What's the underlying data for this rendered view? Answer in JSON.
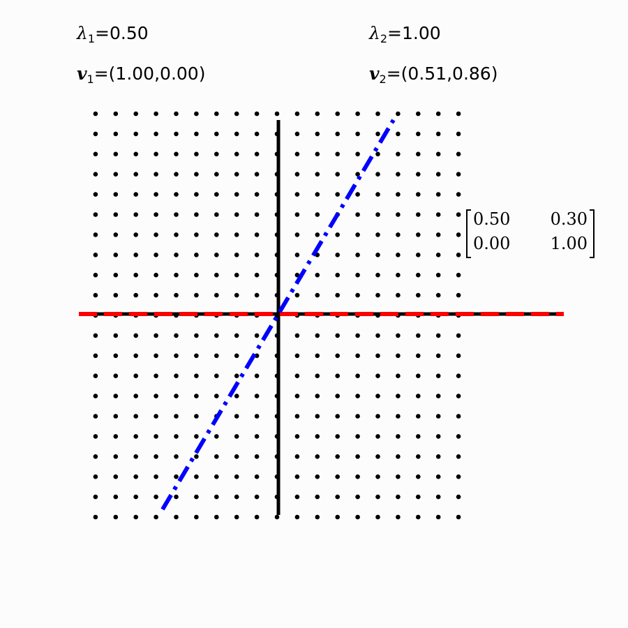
{
  "eigen": {
    "lambda1": {
      "symbol": "λ",
      "sub": "1",
      "eq": "=",
      "value": "0.50"
    },
    "lambda2": {
      "symbol": "λ",
      "sub": "2",
      "eq": "=",
      "value": "1.00"
    },
    "v1": {
      "symbol": "v",
      "sub": "1",
      "eq": "=",
      "value": "(1.00,0.00)"
    },
    "v2": {
      "symbol": "v",
      "sub": "2",
      "eq": "=",
      "value": "(0.51,0.86)"
    }
  },
  "matrix": {
    "rows": [
      [
        "0.50",
        "0.30"
      ],
      [
        "0.00",
        "1.00"
      ]
    ]
  },
  "colors": {
    "grid_dot": "#000000",
    "axes": "#000000",
    "eigvec1_line": "#ff0000",
    "eigvec2_line": "#0000ff",
    "background": "#fcfcfc"
  },
  "grid": {
    "x_range": [
      -5,
      5
    ],
    "y_range": [
      -5,
      5
    ],
    "step": 0.5
  },
  "eigenvectors": [
    {
      "name": "v1",
      "direction": [
        1.0,
        0.0
      ],
      "style": "dashed"
    },
    {
      "name": "v2",
      "direction": [
        0.51,
        0.86
      ],
      "style": "dash-dot"
    }
  ]
}
